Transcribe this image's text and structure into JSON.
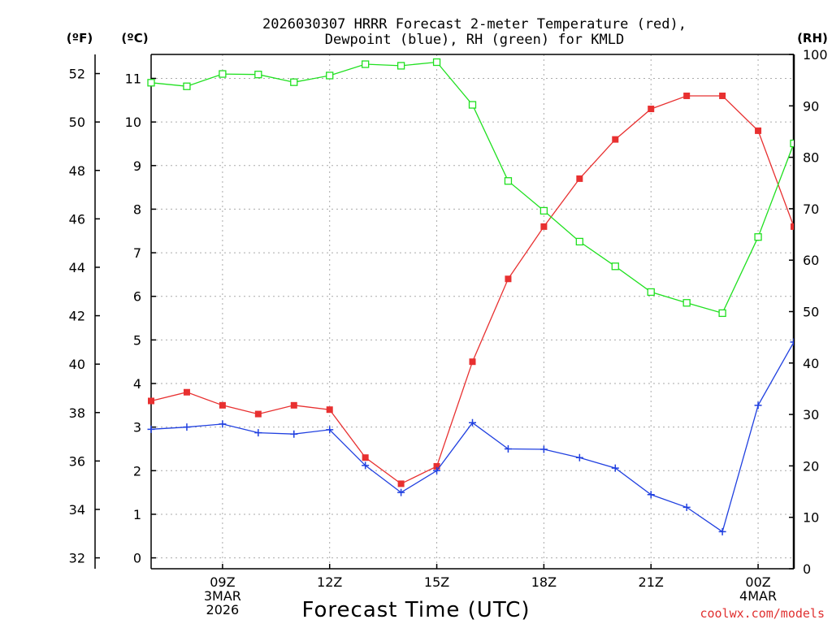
{
  "chart_data": {
    "type": "line",
    "title_line1": "2026030307 HRRR Forecast 2-meter Temperature (red),",
    "title_line2": "Dewpoint (blue), RH (green) for KMLD",
    "xlabel": "Forecast Time (UTC)",
    "units": {
      "fahrenheit": "(ºF)",
      "celsius": "(ºC)",
      "rh": "(RH)"
    },
    "credit": "coolwx.com/models",
    "x_hours": [
      7,
      8,
      9,
      10,
      11,
      12,
      13,
      14,
      15,
      16,
      17,
      18,
      19,
      20,
      21,
      22,
      23,
      24,
      25
    ],
    "xlim": [
      7,
      25
    ],
    "x_ticks": [
      {
        "hour": 9,
        "labels": [
          "09Z",
          "3MAR",
          "2026"
        ]
      },
      {
        "hour": 12,
        "labels": [
          "12Z"
        ]
      },
      {
        "hour": 15,
        "labels": [
          "15Z"
        ]
      },
      {
        "hour": 18,
        "labels": [
          "18Z"
        ]
      },
      {
        "hour": 21,
        "labels": [
          "21Z"
        ]
      },
      {
        "hour": 24,
        "labels": [
          "00Z",
          "4MAR"
        ]
      }
    ],
    "celsius_axis": {
      "ylim": [
        -0.25,
        11.55
      ],
      "ticks": [
        "0",
        "1",
        "2",
        "3",
        "4",
        "5",
        "6",
        "7",
        "8",
        "9",
        "10",
        "11"
      ]
    },
    "fahrenheit_axis": {
      "ticks": [
        "32",
        "34",
        "36",
        "38",
        "40",
        "42",
        "44",
        "46",
        "48",
        "50",
        "52"
      ]
    },
    "rh_axis": {
      "ylim": [
        0,
        100
      ],
      "ticks": [
        "0",
        "10",
        "20",
        "30",
        "40",
        "50",
        "60",
        "70",
        "80",
        "90",
        "100"
      ]
    },
    "series": [
      {
        "name": "Temperature",
        "unit": "C",
        "color": "#e83030",
        "marker": "filled-square",
        "values": [
          3.6,
          3.8,
          3.5,
          3.3,
          3.5,
          3.4,
          2.3,
          1.7,
          2.1,
          4.5,
          6.4,
          7.6,
          8.7,
          9.6,
          10.3,
          10.6,
          10.6,
          9.8,
          7.6
        ]
      },
      {
        "name": "Dewpoint",
        "unit": "C",
        "color": "#2040e0",
        "marker": "plus",
        "values": [
          2.95,
          3.0,
          3.07,
          2.87,
          2.84,
          2.94,
          2.12,
          1.5,
          2.0,
          3.1,
          2.5,
          2.49,
          2.3,
          2.06,
          1.45,
          1.16,
          0.6,
          3.5,
          4.95
        ]
      },
      {
        "name": "RH",
        "unit": "%",
        "color": "#20e020",
        "marker": "open-square",
        "values": [
          94.5,
          93.8,
          96.2,
          96.1,
          94.6,
          95.9,
          98.1,
          97.8,
          98.5,
          90.2,
          75.4,
          69.6,
          63.6,
          58.8,
          53.8,
          51.7,
          49.7,
          64.5,
          82.7
        ]
      }
    ]
  }
}
